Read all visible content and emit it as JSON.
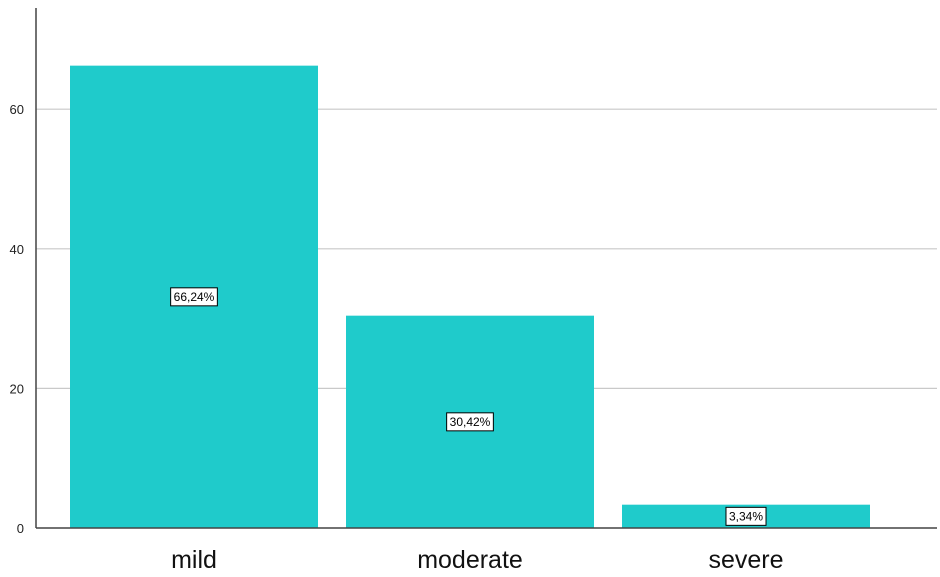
{
  "chart_data": {
    "type": "bar",
    "title": "",
    "xlabel": "",
    "ylabel": "",
    "categories": [
      "mild",
      "moderate",
      "severe"
    ],
    "values": [
      66.24,
      30.42,
      3.34
    ],
    "data_labels": [
      "66,24%",
      "30,42%",
      "3,34%"
    ],
    "y_ticks": [
      "0",
      "20",
      "40",
      "60"
    ],
    "ylim": [
      0,
      74.5
    ],
    "grid": true,
    "legend": "none",
    "bar_color": "#1fcbcb",
    "grid_color": "#c9c9c9",
    "axis_color": "#444444"
  }
}
